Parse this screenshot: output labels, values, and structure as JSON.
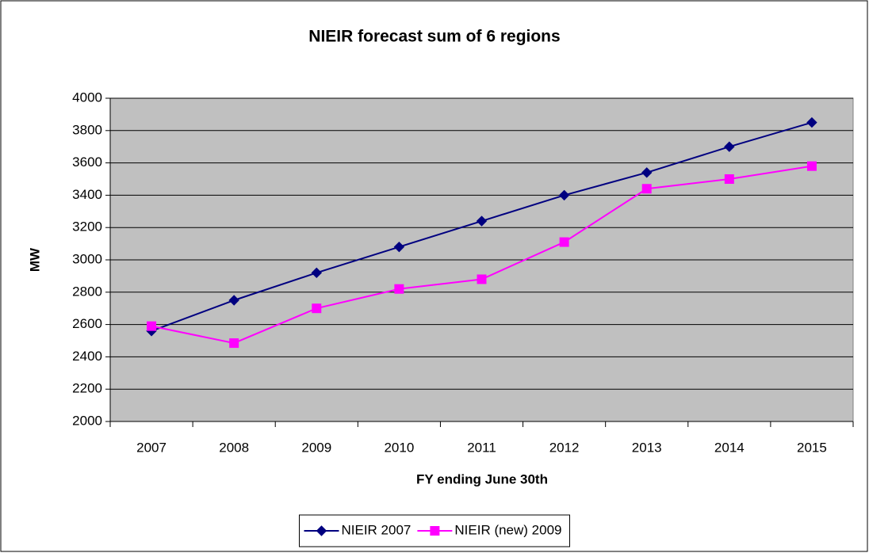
{
  "chart_data": {
    "type": "line",
    "title": "NIEIR forecast sum of 6 regions",
    "x_label": "FY ending June 30th",
    "y_label": "MW",
    "categories": [
      "2007",
      "2008",
      "2009",
      "2010",
      "2011",
      "2012",
      "2013",
      "2014",
      "2015"
    ],
    "series": [
      {
        "name": "NIEIR 2007",
        "color": "#000080",
        "marker": "diamond",
        "values": [
          2560,
          2750,
          2920,
          3080,
          3240,
          3400,
          3540,
          3700,
          3850
        ]
      },
      {
        "name": "NIEIR (new) 2009",
        "color": "#ff00ff",
        "marker": "square",
        "values": [
          2590,
          2485,
          2700,
          2820,
          2880,
          3110,
          3440,
          3500,
          3580
        ]
      }
    ],
    "ylim": [
      2000,
      4000
    ],
    "yticks": [
      2000,
      2200,
      2400,
      2600,
      2800,
      3000,
      3200,
      3400,
      3600,
      3800,
      4000
    ],
    "grid": true,
    "legend": "bottom",
    "plot_background": "#c0c0c0"
  }
}
